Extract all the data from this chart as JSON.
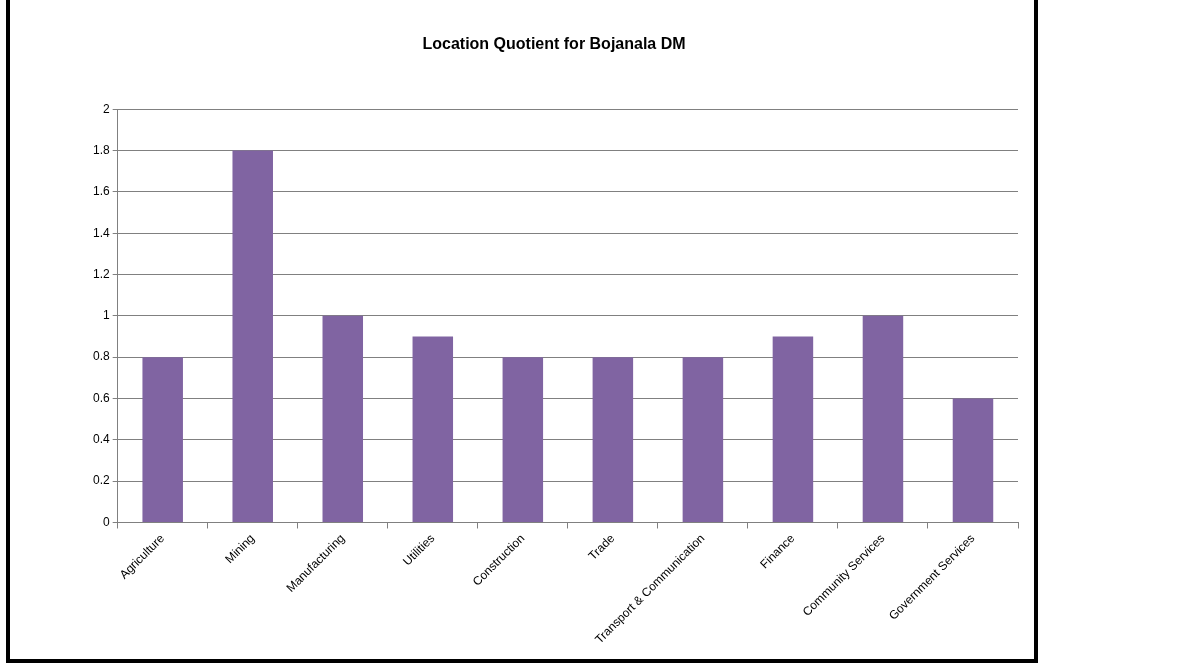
{
  "chart_data": {
    "type": "bar",
    "title": "Location Quotient for Bojanala DM",
    "categories": [
      "Agriculture",
      "Mining",
      "Manufacturing",
      "Utilities",
      "Construction",
      "Trade",
      "Transport & Communication",
      "Finance",
      "Community Services",
      "Government Services"
    ],
    "values": [
      0.8,
      1.8,
      1.0,
      0.9,
      0.8,
      0.8,
      0.8,
      0.9,
      1.0,
      0.6
    ],
    "color": "#8064a2",
    "ylim": [
      0,
      2
    ],
    "yticks": [
      0,
      0.2,
      0.4,
      0.6,
      0.8,
      1,
      1.2,
      1.4,
      1.6,
      1.8,
      2
    ],
    "grid": "y",
    "legend": false
  }
}
